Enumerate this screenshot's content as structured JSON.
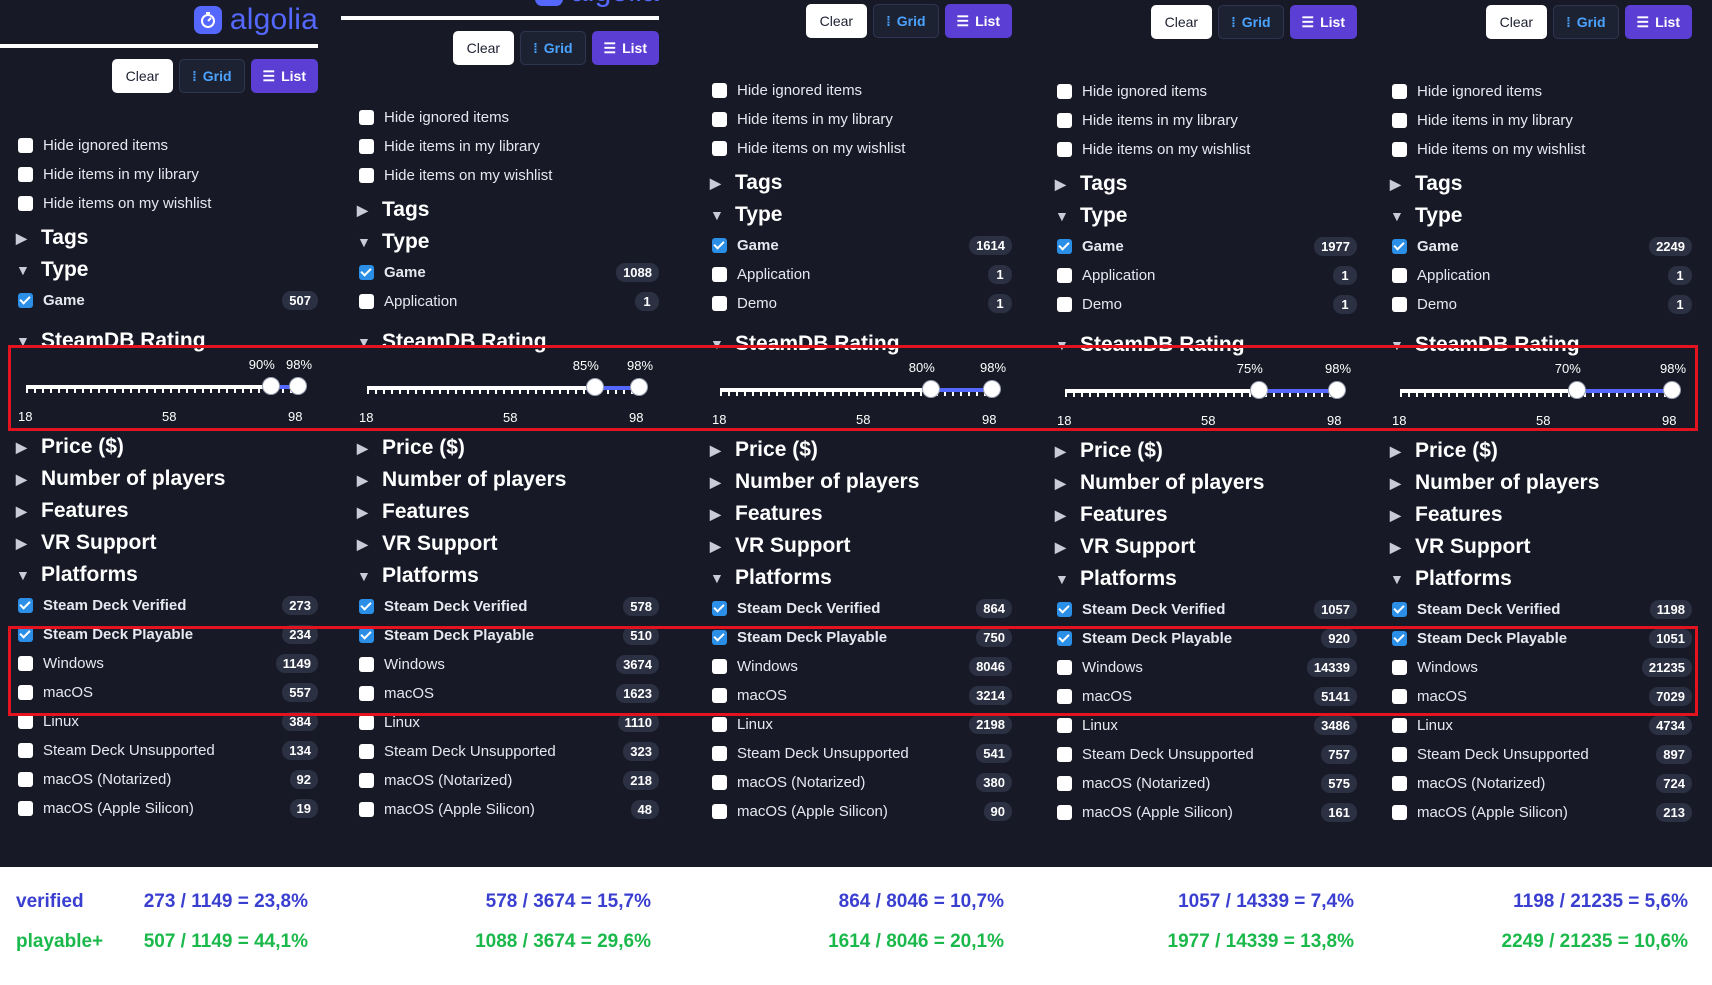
{
  "brand": {
    "name": "algolia"
  },
  "buttons": {
    "clear": "Clear",
    "grid": "Grid",
    "list": "List"
  },
  "checkbox_filters": [
    "Hide ignored items",
    "Hide items in my library",
    "Hide items on my wishlist"
  ],
  "sections": {
    "tags": "Tags",
    "type": "Type",
    "rating": "SteamDB Rating",
    "price": "Price ($)",
    "players": "Number of players",
    "features": "Features",
    "vr": "VR Support",
    "platforms": "Platforms"
  },
  "axis_ticks": [
    "18",
    "58",
    "98"
  ],
  "type_labels": {
    "game": "Game",
    "application": "Application",
    "demo": "Demo"
  },
  "platform_labels": [
    "Steam Deck Verified",
    "Steam Deck Playable",
    "Windows",
    "macOS",
    "Linux",
    "Steam Deck Unsupported",
    "macOS (Notarized)",
    "macOS (Apple Silicon)"
  ],
  "columns": [
    {
      "low": "90%",
      "high": "98%",
      "low_value": 90,
      "high_value": 98,
      "type_counts": {
        "game": "507"
      },
      "platform_counts": [
        "273",
        "234",
        "1149",
        "557",
        "384",
        "134",
        "92",
        "19"
      ]
    },
    {
      "low": "85%",
      "high": "98%",
      "low_value": 85,
      "high_value": 98,
      "type_counts": {
        "game": "1088",
        "application": "1"
      },
      "platform_counts": [
        "578",
        "510",
        "3674",
        "1623",
        "1110",
        "323",
        "218",
        "48"
      ]
    },
    {
      "low": "80%",
      "high": "98%",
      "low_value": 80,
      "high_value": 98,
      "type_counts": {
        "game": "1614",
        "application": "1",
        "demo": "1"
      },
      "platform_counts": [
        "864",
        "750",
        "8046",
        "3214",
        "2198",
        "541",
        "380",
        "90"
      ]
    },
    {
      "low": "75%",
      "high": "98%",
      "low_value": 75,
      "high_value": 98,
      "type_counts": {
        "game": "1977",
        "application": "1",
        "demo": "1"
      },
      "platform_counts": [
        "1057",
        "920",
        "14339",
        "5141",
        "3486",
        "757",
        "575",
        "161"
      ]
    },
    {
      "low": "70%",
      "high": "98%",
      "low_value": 70,
      "high_value": 98,
      "type_counts": {
        "game": "2249",
        "application": "1",
        "demo": "1"
      },
      "platform_counts": [
        "1198",
        "1051",
        "21235",
        "7029",
        "4734",
        "897",
        "724",
        "213"
      ]
    }
  ],
  "stats": {
    "verified_label": "verified",
    "playable_label": "playable+",
    "verified": [
      "273 / 1149 = 23,8%",
      "578 / 3674 = 15,7%",
      "864 / 8046 = 10,7%",
      "1057 / 14339 = 7,4%",
      "1198 / 21235 = 5,6%"
    ],
    "playable": [
      "507 / 1149 = 44,1%",
      "1088 / 3674 = 29,6%",
      "1614 / 8046 = 20,1%",
      "1977 / 14339 = 13,8%",
      "2249 / 21235 = 10,6%"
    ]
  },
  "colors": {
    "background": "#171a26",
    "accent": "#5468ff",
    "list_button": "#5b3fd4",
    "highlight": "#e3131f",
    "stat_blue": "#3a3fd0",
    "stat_green": "#1bb94b"
  }
}
